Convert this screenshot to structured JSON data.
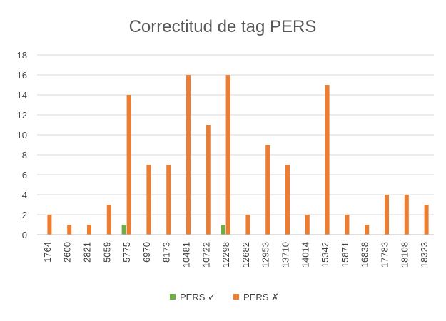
{
  "chart_data": {
    "type": "bar",
    "title": "Correctitud de tag PERS",
    "xlabel": "",
    "ylabel": "",
    "ylim": [
      0,
      18
    ],
    "yticks": [
      0,
      2,
      4,
      6,
      8,
      10,
      12,
      14,
      16,
      18
    ],
    "grid": true,
    "legend_position": "bottom",
    "categories": [
      "1764",
      "2600",
      "2821",
      "5059",
      "5775",
      "6970",
      "8173",
      "10481",
      "10722",
      "12298",
      "12682",
      "12953",
      "13710",
      "14014",
      "15342",
      "15871",
      "16838",
      "17783",
      "18108",
      "18323"
    ],
    "series": [
      {
        "name": "PERS ✓",
        "color": "#70ad47",
        "values": [
          0,
          0,
          0,
          0,
          1,
          0,
          0,
          0,
          0,
          1,
          0,
          0,
          0,
          0,
          0,
          0,
          0,
          0,
          0,
          0
        ]
      },
      {
        "name": "PERS ✗",
        "color": "#ed7d31",
        "values": [
          2,
          1,
          1,
          3,
          14,
          7,
          7,
          16,
          11,
          16,
          2,
          9,
          7,
          2,
          15,
          2,
          1,
          4,
          4,
          3
        ]
      }
    ]
  }
}
